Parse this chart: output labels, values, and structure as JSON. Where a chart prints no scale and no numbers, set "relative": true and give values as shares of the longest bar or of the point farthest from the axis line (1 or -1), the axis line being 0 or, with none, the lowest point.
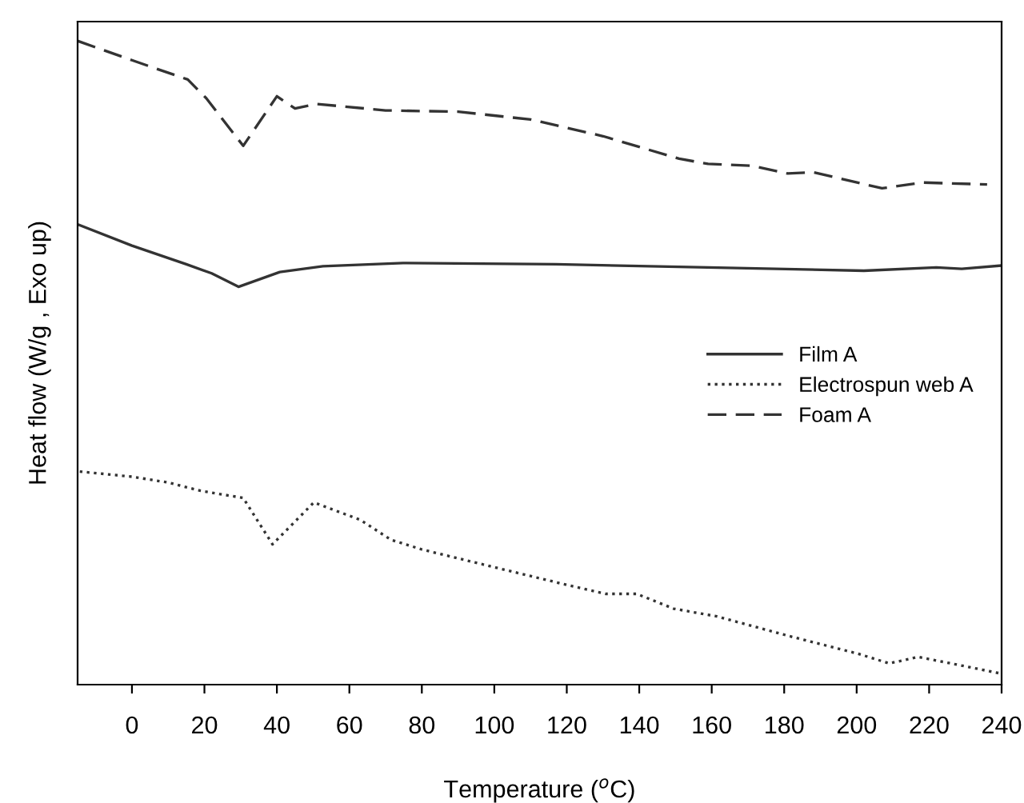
{
  "chart_data": {
    "type": "line",
    "relative": true,
    "xlabel": "Temperature ($^{o}$C)",
    "ylabel": "Heat flow (W/g , Exo up)",
    "xlim": [
      -15,
      240
    ],
    "xticks": [
      0,
      20,
      40,
      60,
      80,
      100,
      120,
      140,
      160,
      180,
      200,
      220,
      240
    ],
    "grid": false,
    "legend": "center right",
    "tick_labels": "x",
    "series": [
      {
        "name": "Film A",
        "color": "#333333",
        "line_style": "solid",
        "x": [
          -15,
          0,
          15,
          22,
          29.4,
          40.8,
          52.7,
          74.8,
          117,
          159,
          202,
          222,
          229,
          240
        ],
        "values": [
          0.715,
          0.682,
          0.653,
          0.639,
          0.618,
          0.641,
          0.65,
          0.655,
          0.653,
          0.648,
          0.643,
          0.648,
          0.646,
          0.651
        ]
      },
      {
        "name": "Electrospun web A",
        "color": "#333333",
        "line_style": "dotted",
        "x": [
          -14.4,
          0,
          10,
          19,
          30.7,
          38.8,
          50.2,
          63,
          71.5,
          80,
          100.3,
          120.7,
          130.8,
          139.3,
          149.5,
          161.4,
          181.7,
          200.4,
          209,
          217,
          226,
          240
        ],
        "values": [
          0.331,
          0.323,
          0.314,
          0.301,
          0.29,
          0.218,
          0.283,
          0.256,
          0.225,
          0.21,
          0.182,
          0.154,
          0.141,
          0.141,
          0.118,
          0.106,
          0.075,
          0.048,
          0.033,
          0.043,
          0.033,
          0.017
        ]
      },
      {
        "name": "Foam A",
        "color": "#333333",
        "line_style": "dashed",
        "x": [
          -15,
          0,
          15.4,
          20.5,
          30.7,
          40,
          45,
          51,
          70,
          90,
          110,
          130,
          151,
          159,
          171,
          181,
          188,
          207,
          218,
          236
        ],
        "values": [
          1.0,
          0.97,
          0.94,
          0.911,
          0.837,
          0.914,
          0.895,
          0.902,
          0.892,
          0.89,
          0.878,
          0.852,
          0.817,
          0.809,
          0.806,
          0.794,
          0.796,
          0.771,
          0.78,
          0.777
        ]
      }
    ]
  }
}
